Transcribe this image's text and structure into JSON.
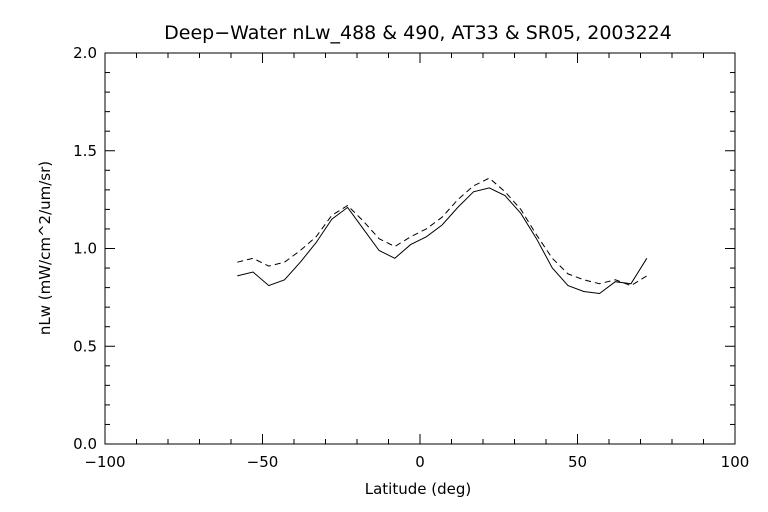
{
  "chart_data": {
    "type": "line",
    "title": "Deep−Water nLw_488 & 490, AT33 & SR05, 2003224",
    "xlabel": "Latitude (deg)",
    "ylabel": "nLw (mW/cm^2/um/sr)",
    "xlim": [
      -100,
      100
    ],
    "ylim": [
      0.0,
      2.0
    ],
    "xticks": [
      "−100",
      "−50",
      "0",
      "50",
      "100"
    ],
    "xtick_values": [
      -100,
      -50,
      0,
      50,
      100
    ],
    "yticks": [
      "0.0",
      "0.5",
      "1.0",
      "1.5",
      "2.0"
    ],
    "ytick_values": [
      0.0,
      0.5,
      1.0,
      1.5,
      2.0
    ],
    "grid": false,
    "series": [
      {
        "style": "solid",
        "x": [
          -58,
          -53,
          -48,
          -43,
          -38,
          -33,
          -28,
          -23,
          -18,
          -13,
          -8,
          -3,
          2,
          7,
          12,
          17,
          22,
          27,
          32,
          37,
          42,
          47,
          52,
          57,
          62,
          67,
          72
        ],
        "y": [
          0.86,
          0.88,
          0.81,
          0.84,
          0.93,
          1.03,
          1.15,
          1.21,
          1.1,
          0.99,
          0.95,
          1.02,
          1.06,
          1.12,
          1.21,
          1.29,
          1.31,
          1.27,
          1.18,
          1.05,
          0.9,
          0.81,
          0.78,
          0.77,
          0.83,
          0.82,
          0.95
        ]
      },
      {
        "style": "dashed",
        "x": [
          -58,
          -53,
          -48,
          -43,
          -38,
          -33,
          -28,
          -23,
          -18,
          -13,
          -8,
          -3,
          2,
          7,
          12,
          17,
          22,
          27,
          32,
          37,
          42,
          47,
          52,
          57,
          62,
          67,
          72
        ],
        "y": [
          0.93,
          0.95,
          0.91,
          0.93,
          0.99,
          1.06,
          1.17,
          1.22,
          1.14,
          1.05,
          1.01,
          1.06,
          1.1,
          1.16,
          1.25,
          1.32,
          1.36,
          1.29,
          1.2,
          1.07,
          0.95,
          0.87,
          0.84,
          0.82,
          0.84,
          0.81,
          0.86
        ]
      }
    ]
  }
}
